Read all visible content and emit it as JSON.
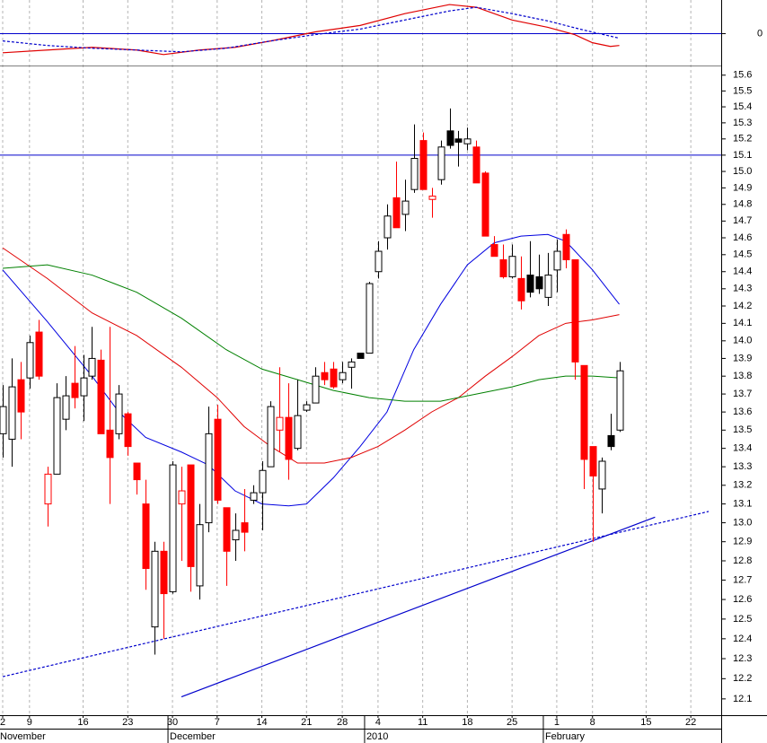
{
  "chart_data": {
    "type": "candlestick",
    "xlim": [
      -0.3,
      80.4
    ],
    "xticks": [
      {
        "value": 0,
        "label": "2"
      },
      {
        "value": 3,
        "label": "9"
      },
      {
        "value": 9,
        "label": "16"
      },
      {
        "value": 14,
        "label": "23"
      },
      {
        "value": 19,
        "label": "30"
      },
      {
        "value": 24,
        "label": "7"
      },
      {
        "value": 29,
        "label": "14"
      },
      {
        "value": 34,
        "label": "21"
      },
      {
        "value": 38,
        "label": "28"
      },
      {
        "value": 42,
        "label": "4"
      },
      {
        "value": 47,
        "label": "11"
      },
      {
        "value": 52,
        "label": "18"
      },
      {
        "value": 57,
        "label": "25"
      },
      {
        "value": 62,
        "label": "1"
      },
      {
        "value": 66,
        "label": "8"
      },
      {
        "value": 72,
        "label": "15"
      },
      {
        "value": 77,
        "label": "22"
      }
    ],
    "month_labels": [
      {
        "value": 0,
        "label": "November"
      },
      {
        "value": 19,
        "label": "December"
      },
      {
        "value": 41,
        "label": "2010"
      },
      {
        "value": 61,
        "label": "February"
      }
    ],
    "ylim": [
      12.02,
      15.65
    ],
    "log_scale": true,
    "grid_x": true,
    "yticks": [
      12.1,
      12.2,
      12.3,
      12.4,
      12.5,
      12.6,
      12.7,
      12.8,
      12.9,
      {
        "value": 13,
        "label": "13.0"
      },
      13.1,
      13.2,
      13.3,
      13.4,
      13.5,
      13.6,
      13.7,
      13.8,
      13.9,
      {
        "value": 14,
        "label": "14.0"
      },
      14.1,
      14.2,
      14.3,
      14.4,
      14.5,
      14.6,
      14.7,
      14.8,
      14.9,
      {
        "value": 15,
        "label": "15.0"
      },
      15.1,
      15.2,
      15.3,
      15.4,
      15.5,
      15.6
    ],
    "colors": {
      "rise": "#ffffff",
      "fall": "#ff0000",
      "fall_above_prev": "#000000",
      "rise_below_prev_outline": "#ff0000",
      "outline": "#000000"
    },
    "candles": {
      "x": [
        0,
        1,
        2,
        3,
        4,
        5,
        6,
        7,
        8,
        9,
        10,
        11,
        12,
        13,
        14,
        15,
        16,
        17,
        18,
        19,
        20,
        21,
        22,
        23,
        24,
        25,
        26,
        27,
        28,
        29,
        30,
        31,
        32,
        33,
        34,
        35,
        36,
        37,
        38,
        39,
        40,
        41,
        42,
        43,
        44,
        45,
        46,
        47,
        48,
        49,
        50,
        51,
        52,
        53,
        54,
        55,
        56,
        57,
        58,
        59,
        60,
        61,
        62,
        63,
        64,
        65,
        66,
        67,
        68,
        69
      ],
      "open": [
        13.48,
        13.45,
        13.78,
        13.79,
        14.05,
        13.1,
        13.26,
        13.56,
        13.76,
        13.69,
        13.8,
        13.89,
        13.5,
        13.48,
        13.59,
        13.32,
        13.1,
        12.46,
        12.85,
        12.64,
        13.1,
        13.31,
        12.67,
        13.0,
        13.56,
        13.08,
        12.91,
        13.0,
        13.12,
        13.16,
        13.3,
        13.5,
        13.57,
        13.4,
        13.61,
        13.65,
        13.82,
        13.84,
        13.78,
        13.85,
        13.93,
        13.93,
        14.4,
        14.6,
        14.84,
        14.74,
        14.89,
        15.19,
        14.83,
        14.95,
        15.25,
        15.2,
        15.17,
        15.15,
        14.99,
        14.56,
        14.47,
        14.37,
        14.36,
        14.38,
        14.37,
        14.25,
        14.41,
        14.62,
        14.47,
        13.86,
        13.41,
        13.18,
        13.47,
        13.5
      ],
      "high": [
        13.75,
        13.9,
        13.88,
        14.03,
        14.12,
        13.3,
        13.76,
        13.8,
        13.97,
        13.92,
        14.08,
        13.95,
        14.08,
        13.75,
        13.6,
        13.32,
        13.23,
        12.9,
        12.9,
        13.33,
        13.3,
        13.31,
        13.1,
        13.63,
        13.64,
        13.08,
        13.05,
        13.18,
        13.2,
        13.33,
        13.66,
        13.85,
        13.76,
        13.78,
        13.66,
        13.85,
        13.88,
        13.88,
        13.88,
        13.9,
        13.93,
        14.34,
        14.58,
        14.8,
        15.06,
        14.95,
        15.29,
        15.24,
        14.9,
        15.19,
        15.39,
        15.25,
        15.27,
        15.19,
        15.0,
        14.61,
        14.56,
        14.56,
        14.49,
        14.58,
        14.5,
        14.51,
        14.59,
        14.65,
        14.47,
        13.86,
        13.41,
        13.35,
        13.59,
        13.88
      ],
      "low": [
        13.35,
        13.3,
        13.45,
        13.73,
        13.78,
        12.98,
        13.26,
        13.5,
        13.62,
        13.55,
        13.78,
        13.48,
        13.1,
        13.45,
        13.36,
        13.15,
        12.65,
        12.32,
        12.4,
        12.63,
        12.8,
        12.64,
        12.6,
        12.95,
        13.1,
        12.67,
        12.8,
        12.85,
        13.1,
        12.96,
        13.3,
        13.38,
        13.23,
        13.39,
        13.6,
        13.65,
        13.75,
        13.73,
        13.76,
        13.73,
        13.9,
        13.93,
        14.36,
        14.53,
        14.66,
        14.64,
        14.87,
        14.89,
        14.72,
        14.92,
        15.14,
        15.03,
        15.13,
        14.93,
        14.61,
        14.49,
        14.36,
        14.36,
        14.18,
        14.25,
        14.27,
        14.2,
        14.28,
        14.42,
        13.78,
        13.18,
        12.9,
        13.05,
        13.39,
        13.49
      ],
      "close": [
        13.63,
        13.74,
        13.6,
        13.99,
        13.8,
        13.26,
        13.68,
        13.69,
        13.68,
        13.79,
        13.9,
        13.48,
        13.35,
        13.7,
        13.41,
        13.23,
        12.76,
        12.85,
        12.63,
        13.31,
        13.17,
        12.77,
        12.99,
        13.48,
        13.12,
        12.85,
        12.96,
        12.95,
        13.16,
        13.28,
        13.63,
        13.57,
        13.34,
        13.58,
        13.64,
        13.8,
        13.78,
        13.74,
        13.82,
        13.88,
        13.9,
        14.33,
        14.52,
        14.73,
        14.66,
        14.82,
        15.08,
        14.89,
        14.85,
        15.15,
        15.16,
        15.18,
        15.2,
        14.93,
        14.61,
        14.49,
        14.37,
        14.49,
        14.23,
        14.28,
        14.3,
        14.38,
        14.52,
        14.47,
        13.88,
        13.34,
        13.25,
        13.33,
        13.41,
        13.83
      ]
    },
    "lines": [
      {
        "color": "#0000e0",
        "x": [
          0,
          5,
          10,
          13,
          16,
          20,
          23,
          26,
          29,
          32,
          34,
          37,
          40,
          43,
          46,
          49,
          52,
          55,
          58,
          61,
          63,
          66,
          69
        ],
        "values": [
          14.41,
          14.11,
          13.8,
          13.6,
          13.46,
          13.38,
          13.31,
          13.17,
          13.1,
          13.09,
          13.1,
          13.24,
          13.41,
          13.6,
          13.95,
          14.21,
          14.44,
          14.57,
          14.61,
          14.62,
          14.58,
          14.41,
          14.21
        ]
      },
      {
        "color": "#e00000",
        "x": [
          0,
          5,
          10,
          15,
          20,
          24,
          27,
          30,
          33,
          36,
          39,
          42,
          45,
          48,
          51,
          54,
          57,
          60,
          63,
          66,
          69
        ],
        "values": [
          14.54,
          14.36,
          14.16,
          14.03,
          13.85,
          13.68,
          13.52,
          13.41,
          13.32,
          13.32,
          13.35,
          13.41,
          13.5,
          13.6,
          13.68,
          13.8,
          13.91,
          14.03,
          14.1,
          14.12,
          14.15
        ]
      },
      {
        "color": "#008000",
        "x": [
          0,
          5,
          10,
          15,
          20,
          25,
          29,
          33,
          37,
          41,
          45,
          49,
          53,
          57,
          60,
          63,
          66,
          69
        ],
        "values": [
          14.42,
          14.44,
          14.38,
          14.28,
          14.13,
          13.95,
          13.84,
          13.78,
          13.72,
          13.68,
          13.66,
          13.66,
          13.7,
          13.74,
          13.78,
          13.8,
          13.8,
          13.79
        ]
      }
    ],
    "hlines": [
      {
        "value": 15.1,
        "color": "#0000cc"
      }
    ],
    "trendlines": [
      {
        "color": "#0000cc",
        "dashed": false,
        "x": [
          20,
          73
        ],
        "values": [
          12.11,
          13.03
        ]
      },
      {
        "color": "#0000cc",
        "dashed": true,
        "x": [
          0,
          79
        ],
        "values": [
          12.21,
          13.06
        ]
      }
    ],
    "oscillator": {
      "ylim": [
        -0.35,
        0.37
      ],
      "yticks": [
        0
      ],
      "zero_line_color": "#0000cc",
      "series": [
        {
          "color": "#e00000",
          "dashed": false,
          "x": [
            0,
            5,
            10,
            15,
            18,
            22,
            26,
            30,
            35,
            40,
            45,
            50,
            53,
            57,
            61,
            64,
            66,
            68,
            69
          ],
          "values": [
            -0.21,
            -0.18,
            -0.15,
            -0.18,
            -0.23,
            -0.18,
            -0.15,
            -0.08,
            0.02,
            0.09,
            0.22,
            0.32,
            0.29,
            0.15,
            0.07,
            -0.01,
            -0.1,
            -0.14,
            -0.13
          ]
        },
        {
          "color": "#0000cc",
          "dashed": true,
          "x": [
            0,
            5,
            10,
            15,
            20,
            25,
            30,
            35,
            40,
            45,
            50,
            53,
            57,
            61,
            65,
            69
          ],
          "values": [
            -0.08,
            -0.13,
            -0.16,
            -0.18,
            -0.2,
            -0.16,
            -0.08,
            -0.01,
            0.05,
            0.15,
            0.25,
            0.29,
            0.22,
            0.14,
            0.04,
            -0.05
          ]
        }
      ]
    }
  }
}
